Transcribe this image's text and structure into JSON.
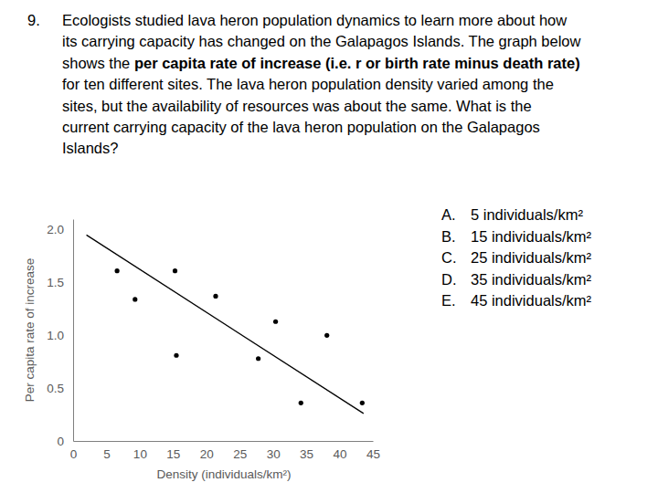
{
  "question": {
    "number": "9.",
    "lines": [
      [
        "Ecologists studied lava heron population dynamics to learn more about how"
      ],
      [
        "its carrying capacity has changed on the Galapagos Islands. The graph below"
      ],
      [
        "shows the ",
        "per capita rate of increase (i.e. r or birth rate minus death rate)"
      ],
      [
        "for ten different sites. The lava heron population density varied among the"
      ],
      [
        "sites, but the availability of resources was about the same. What is the"
      ],
      [
        "current carrying capacity of the lava heron population on the Galapagos"
      ],
      [
        "Islands?"
      ]
    ]
  },
  "choices": [
    {
      "letter": "A.",
      "text": "5 individuals/km²"
    },
    {
      "letter": "B.",
      "text": "15 individuals/km²"
    },
    {
      "letter": "C.",
      "text": "25 individuals/km²"
    },
    {
      "letter": "D.",
      "text": "35 individuals/km²"
    },
    {
      "letter": "E.",
      "text": "45 individuals/km²"
    }
  ],
  "chart_data": {
    "type": "scatter",
    "xlabel": "Density (individuals/km²)",
    "ylabel": "Per capita rate of increase",
    "xlim": [
      0,
      45
    ],
    "ylim": [
      0,
      2.1
    ],
    "xticks": [
      0,
      5,
      10,
      15,
      20,
      25,
      30,
      35,
      40,
      45
    ],
    "yticks": [
      0,
      0.5,
      {
        "value": 1,
        "label": "1.0"
      },
      1.5,
      {
        "value": 2,
        "label": "2.0"
      }
    ],
    "grid": false,
    "series": [
      {
        "type": "scatter",
        "color": "#000000",
        "marker": "circle",
        "x": [
          6.6,
          9.3,
          15.3,
          15.5,
          21.4,
          27.8,
          30.4,
          34.2,
          38.1,
          43.4
        ],
        "values": [
          1.61,
          1.34,
          1.61,
          0.81,
          1.37,
          0.78,
          1.13,
          0.36,
          1.0,
          0.36
        ]
      },
      {
        "type": "line",
        "color": "#000000",
        "line_style": "solid",
        "x": [
          2,
          43.6
        ],
        "values": [
          1.95,
          0.26
        ]
      }
    ]
  }
}
